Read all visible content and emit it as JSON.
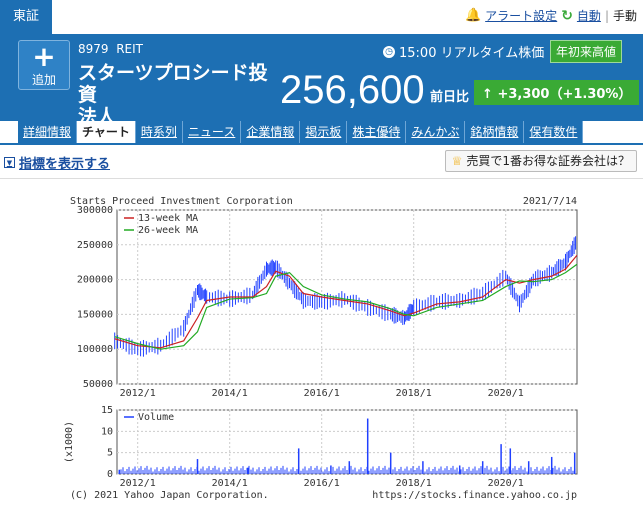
{
  "exchange": "東証",
  "top_links": {
    "alert": "アラート設定",
    "auto": "自動",
    "manual": "手動"
  },
  "header": {
    "add_label": "追加",
    "code": "8979",
    "market_type": "REIT",
    "name_line1": "スターツプロシード投資",
    "name_line2": "法人",
    "time": "15:00 リアルタイム株価",
    "year_high_badge": "年初来高値",
    "price": "256,600",
    "change_label": "前日比",
    "change": "+3,300（+1.30%）"
  },
  "tabs": [
    "詳細情報",
    "チャート",
    "時系列",
    "ニュース",
    "企業情報",
    "掲示板",
    "株主優待",
    "みんかぶ",
    "銘柄情報",
    "保有数件"
  ],
  "active_tab": 1,
  "indicator_toggle": "指標を表示する",
  "broker_button": "売買で1番お得な証券会社は？",
  "colors": {
    "brand_blue": "#1d6fb3",
    "up_green": "#3aaa35",
    "candle_up": "#2040ff",
    "ma13": "#cc2222",
    "ma26": "#22aa22"
  },
  "chart_data": {
    "type": "line",
    "title": "Starts Proceed Investment Corporation",
    "date": "2021/7/14",
    "legend": [
      "13-week MA",
      "26-week MA"
    ],
    "legend_position": "top-left",
    "ylim": [
      50000,
      300000
    ],
    "yticks": [
      "300000",
      "250000",
      "200000",
      "150000",
      "100000",
      "50000"
    ],
    "xticks": [
      "2012/1",
      "2014/1",
      "2016/1",
      "2018/1",
      "2020/1"
    ],
    "x": [
      2011.5,
      2012.0,
      2012.5,
      2013.0,
      2013.3,
      2013.5,
      2014.0,
      2014.5,
      2014.8,
      2015.0,
      2015.3,
      2015.6,
      2016.0,
      2016.5,
      2017.0,
      2017.5,
      2017.8,
      2018.0,
      2018.5,
      2019.0,
      2019.5,
      2020.0,
      2020.3,
      2020.6,
      2021.0,
      2021.3,
      2021.55
    ],
    "series": [
      {
        "name": "13-week MA",
        "values": [
          115000,
          105000,
          102000,
          112000,
          145000,
          170000,
          175000,
          175000,
          190000,
          212000,
          205000,
          180000,
          175000,
          170000,
          165000,
          155000,
          148000,
          152000,
          165000,
          168000,
          175000,
          200000,
          195000,
          200000,
          205000,
          215000,
          235000
        ]
      },
      {
        "name": "26-week MA",
        "values": [
          118000,
          108000,
          100000,
          105000,
          125000,
          160000,
          172000,
          174000,
          180000,
          205000,
          210000,
          190000,
          178000,
          172000,
          168000,
          158000,
          150000,
          148000,
          160000,
          165000,
          170000,
          190000,
          198000,
          197000,
          200000,
          210000,
          222000
        ]
      },
      {
        "name": "price",
        "values": [
          112000,
          100000,
          105000,
          130000,
          185000,
          175000,
          172000,
          178000,
          215000,
          218000,
          195000,
          170000,
          168000,
          172000,
          160000,
          150000,
          145000,
          160000,
          168000,
          170000,
          180000,
          205000,
          165000,
          200000,
          210000,
          225000,
          256600
        ]
      }
    ],
    "volume": {
      "legend": "Volume",
      "ylabel": "(x1000)",
      "ylim": [
        0,
        15
      ],
      "yticks": [
        "15",
        "10",
        "5",
        "0"
      ],
      "x": [
        2011.6,
        2013.3,
        2014.4,
        2015.5,
        2016.2,
        2016.6,
        2017.0,
        2017.5,
        2018.2,
        2019.0,
        2019.5,
        2019.9,
        2020.1,
        2020.5,
        2021.0,
        2021.5
      ],
      "values": [
        1,
        3.5,
        1.5,
        6,
        2,
        3,
        13,
        5,
        3,
        2,
        3,
        7,
        6,
        3,
        4,
        5
      ]
    },
    "footer_left": "(C) 2021 Yahoo Japan Corporation.",
    "footer_right": "https://stocks.finance.yahoo.co.jp"
  }
}
